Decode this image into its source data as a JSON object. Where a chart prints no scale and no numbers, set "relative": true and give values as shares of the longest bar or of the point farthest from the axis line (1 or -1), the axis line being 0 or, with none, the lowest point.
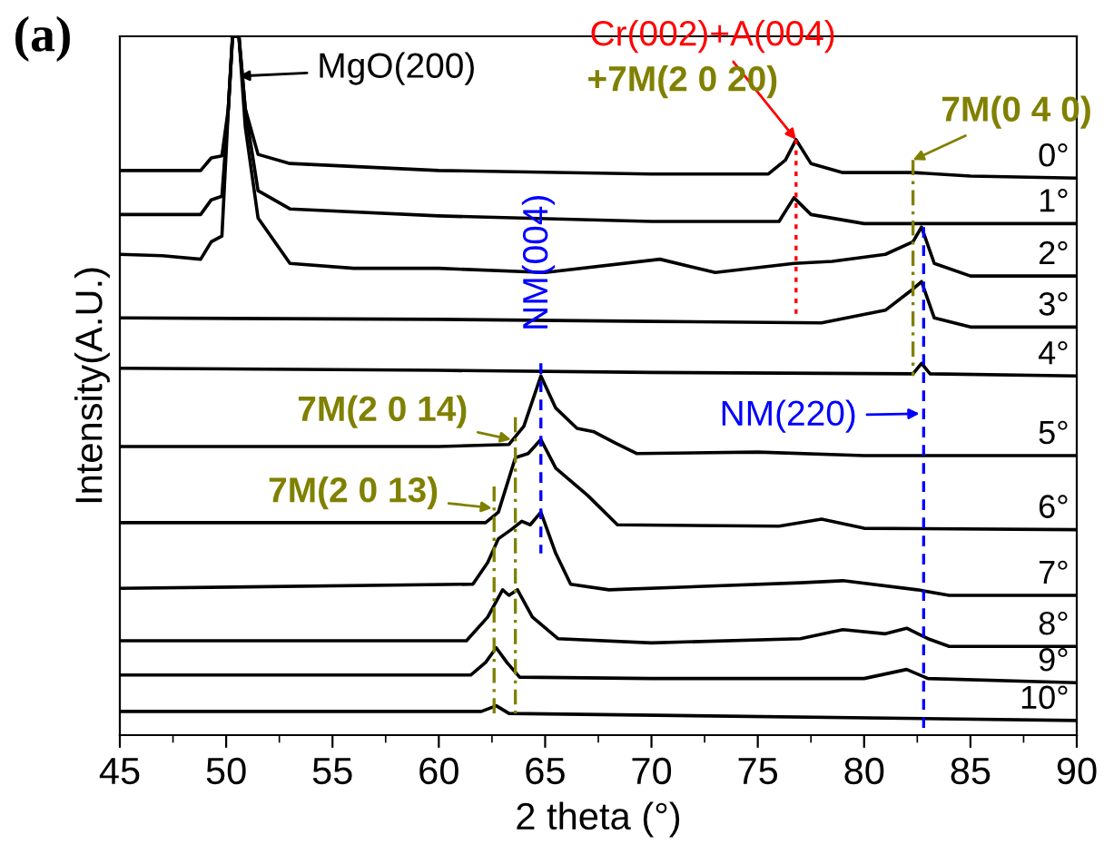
{
  "chart_data": {
    "type": "line",
    "relative": true,
    "xlabel": "2 theta (°)",
    "ylabel": "Intensity(A.U.)",
    "xlim": [
      45,
      90
    ],
    "xticks": [
      45,
      50,
      55,
      60,
      65,
      70,
      75,
      80,
      85,
      90
    ],
    "tick_labels": "x",
    "grid": false,
    "legend": false,
    "marker": "none",
    "series": [
      {
        "name": "0°",
        "color": "#000000",
        "x": [
          45,
          48.8,
          49.3,
          49.8,
          50.1,
          50.3,
          50.6,
          50.9,
          51.5,
          53,
          60,
          70,
          75.5,
          76.3,
          76.8,
          77.5,
          79,
          82.3,
          85,
          90
        ],
        "values": [
          0.808,
          0.808,
          0.826,
          0.829,
          0.896,
          1.0,
          1.0,
          0.896,
          0.831,
          0.818,
          0.808,
          0.803,
          0.803,
          0.823,
          0.852,
          0.818,
          0.805,
          0.805,
          0.8,
          0.797
        ]
      },
      {
        "name": "1°",
        "color": "#000000",
        "x": [
          45,
          48.8,
          49.3,
          49.8,
          50.1,
          50.3,
          50.6,
          50.9,
          51.5,
          53,
          60,
          70,
          76,
          76.7,
          77.5,
          80,
          90
        ],
        "values": [
          0.745,
          0.745,
          0.766,
          0.771,
          0.896,
          1.0,
          1.0,
          0.896,
          0.779,
          0.753,
          0.743,
          0.735,
          0.735,
          0.769,
          0.745,
          0.732,
          0.732
        ]
      },
      {
        "name": "2°",
        "color": "#000000",
        "x": [
          45,
          47,
          48.8,
          49.3,
          49.8,
          50.1,
          50.3,
          50.6,
          50.9,
          51.5,
          53,
          56,
          60,
          65,
          70.4,
          73,
          76.7,
          78.5,
          81,
          82.3,
          82.7,
          83.3,
          85,
          90
        ],
        "values": [
          0.688,
          0.686,
          0.681,
          0.706,
          0.714,
          0.896,
          1.0,
          1.0,
          0.87,
          0.74,
          0.675,
          0.668,
          0.668,
          0.662,
          0.681,
          0.662,
          0.675,
          0.678,
          0.688,
          0.706,
          0.727,
          0.675,
          0.657,
          0.657
        ]
      },
      {
        "name": "3°",
        "color": "#000000",
        "x": [
          45,
          60,
          70,
          78,
          81,
          82.2,
          82.7,
          83.3,
          85,
          90
        ],
        "values": [
          0.597,
          0.595,
          0.592,
          0.59,
          0.608,
          0.636,
          0.649,
          0.597,
          0.584,
          0.584
        ]
      },
      {
        "name": "4°",
        "color": "#000000",
        "x": [
          45,
          60,
          70,
          82.3,
          82.7,
          83.1,
          90
        ],
        "values": [
          0.525,
          0.522,
          0.519,
          0.517,
          0.532,
          0.517,
          0.514
        ]
      },
      {
        "name": "5°",
        "color": "#000000",
        "x": [
          45,
          60,
          63.3,
          64,
          64.8,
          65.5,
          66.5,
          67.3,
          68.3,
          69.3,
          75,
          80,
          90
        ],
        "values": [
          0.413,
          0.413,
          0.416,
          0.442,
          0.514,
          0.468,
          0.439,
          0.434,
          0.418,
          0.403,
          0.405,
          0.4,
          0.4
        ]
      },
      {
        "name": "6°",
        "color": "#000000",
        "x": [
          45,
          62.2,
          62.8,
          63.6,
          64.2,
          64.8,
          65.5,
          67,
          68.4,
          76,
          78,
          80,
          90
        ],
        "values": [
          0.304,
          0.304,
          0.319,
          0.397,
          0.403,
          0.423,
          0.382,
          0.343,
          0.301,
          0.299,
          0.309,
          0.296,
          0.294
        ]
      },
      {
        "name": "7°",
        "color": "#000000",
        "x": [
          45,
          61.6,
          62.3,
          62.8,
          63.4,
          63.9,
          64.3,
          64.8,
          65.5,
          66.2,
          68,
          77,
          79,
          82.5,
          84,
          90
        ],
        "values": [
          0.21,
          0.216,
          0.247,
          0.281,
          0.294,
          0.306,
          0.301,
          0.319,
          0.26,
          0.216,
          0.208,
          0.218,
          0.221,
          0.208,
          0.2,
          0.2
        ]
      },
      {
        "name": "8°",
        "color": "#000000",
        "x": [
          45,
          61.3,
          62.3,
          63,
          63.3,
          63.7,
          64.4,
          65.6,
          70,
          77,
          79,
          81,
          82,
          83,
          84,
          90
        ],
        "values": [
          0.135,
          0.135,
          0.169,
          0.208,
          0.2,
          0.208,
          0.169,
          0.138,
          0.132,
          0.138,
          0.151,
          0.145,
          0.153,
          0.138,
          0.127,
          0.127
        ]
      },
      {
        "name": "9°",
        "color": "#000000",
        "x": [
          45,
          61.5,
          62.2,
          62.7,
          63.2,
          63.8,
          70,
          80,
          82,
          83,
          90
        ],
        "values": [
          0.086,
          0.086,
          0.104,
          0.125,
          0.104,
          0.083,
          0.081,
          0.081,
          0.094,
          0.081,
          0.075
        ]
      },
      {
        "name": "10°",
        "color": "#000000",
        "x": [
          45,
          62,
          62.7,
          63.3,
          90
        ],
        "values": [
          0.034,
          0.034,
          0.042,
          0.031,
          0.021
        ]
      },
      {
        "color": "#ff0000",
        "line_style": "dotted",
        "x": [
          76.8,
          76.8
        ],
        "values": [
          0.852,
          0.603
        ]
      },
      {
        "color": "#808000",
        "line_style": "dashdot",
        "x": [
          82.3,
          82.3
        ],
        "values": [
          0.823,
          0.514
        ]
      },
      {
        "color": "#0000ff",
        "line_style": "dashed",
        "x": [
          82.8,
          82.8
        ],
        "values": [
          0.727,
          0.008
        ]
      },
      {
        "color": "#0000ff",
        "line_style": "dashed",
        "x": [
          64.8,
          64.8
        ],
        "values": [
          0.532,
          0.26
        ]
      },
      {
        "color": "#808000",
        "line_style": "dashdot",
        "x": [
          63.6,
          63.6
        ],
        "values": [
          0.455,
          0.026
        ]
      },
      {
        "color": "#808000",
        "line_style": "dashdot",
        "x": [
          62.6,
          62.6
        ],
        "values": [
          0.356,
          0.026
        ]
      }
    ],
    "annotations": [
      {
        "text": "MgO(200)",
        "x": 50.6,
        "y": 0.943
      },
      {
        "text": "Cr(002)+A(004)",
        "x": 76.8,
        "y": 0.852
      },
      {
        "text": "+7M(2 0 20)",
        "x": 76.8,
        "y": 0.852
      },
      {
        "text": "7M(0 4 0)",
        "x": 82.3,
        "y": 0.823
      },
      {
        "text": "NM(004)",
        "x": 64.8,
        "y": 0.532
      },
      {
        "text": "NM(220)",
        "x": 82.6,
        "y": 0.46
      },
      {
        "text": "7M(2 0 14)",
        "x": 63.4,
        "y": 0.423
      },
      {
        "text": "7M(2 0 13)",
        "x": 62.5,
        "y": 0.325
      },
      "(a)"
    ]
  }
}
